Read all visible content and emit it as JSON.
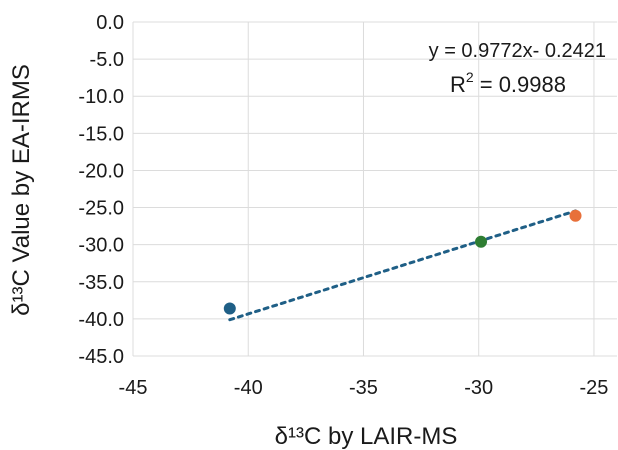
{
  "chart_data": {
    "type": "scatter",
    "title": "",
    "xlabel": "δ¹³C by LAIR-MS",
    "ylabel": "δ¹³C Value by EA-IRMS",
    "xlim": [
      -45,
      -24
    ],
    "ylim": [
      -45,
      0
    ],
    "xticks": [
      -45,
      -40,
      -35,
      -30,
      -25
    ],
    "yticks": [
      0,
      -5,
      -10,
      -15,
      -20,
      -25,
      -30,
      -35,
      -40,
      -45
    ],
    "grid": true,
    "legend": "none",
    "points": [
      {
        "x": -40.8,
        "y": -38.6,
        "color": "#1f5f86"
      },
      {
        "x": -29.9,
        "y": -29.6,
        "color": "#2e7d32"
      },
      {
        "x": -25.8,
        "y": -26.1,
        "color": "#e8703a"
      }
    ],
    "trendline": {
      "slope": 0.9772,
      "intercept": -0.2421,
      "x_range": [
        -40.8,
        -25.8
      ],
      "color": "#1f5f86",
      "style": "dotted"
    },
    "annotations": {
      "equation": "y = 0.9772x- 0.2421",
      "r2_prefix": "R",
      "r2_sup": "2",
      "r2_value": " = 0.9988"
    }
  }
}
